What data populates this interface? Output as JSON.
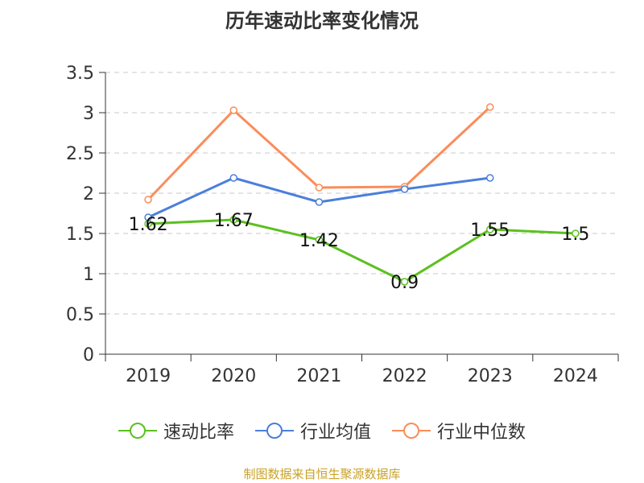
{
  "colors": {
    "speed_ratio": "#5cc020",
    "industry_mean": "#4b7fdb",
    "industry_median": "#fa8d5a",
    "grid": "#c8c8c8",
    "axis": "#333333",
    "source": "#c9a227"
  },
  "source_text": "制图数据来自恒生聚源数据库",
  "chart_data": {
    "type": "line",
    "title": "历年速动比率变化情况",
    "xlabel": "",
    "ylabel": "",
    "categories": [
      "2019",
      "2020",
      "2021",
      "2022",
      "2023",
      "2024"
    ],
    "ylim": [
      0,
      3.5
    ],
    "yticks": [
      "0",
      "0.5",
      "1",
      "1.5",
      "2",
      "2.5",
      "3",
      "3.5"
    ],
    "grid": true,
    "legend_position": "bottom",
    "series": [
      {
        "name": "速动比率",
        "color_key": "speed_ratio",
        "values": [
          1.62,
          1.67,
          1.42,
          0.9,
          1.55,
          1.5
        ],
        "labels": [
          "1.62",
          "1.67",
          "1.42",
          "0.9",
          "1.55",
          "1.5"
        ]
      },
      {
        "name": "行业均值",
        "color_key": "industry_mean",
        "values": [
          1.7,
          2.19,
          1.89,
          2.05,
          2.19,
          null
        ]
      },
      {
        "name": "行业中位数",
        "color_key": "industry_median",
        "values": [
          1.92,
          3.03,
          2.07,
          2.08,
          3.07,
          null
        ]
      }
    ]
  }
}
